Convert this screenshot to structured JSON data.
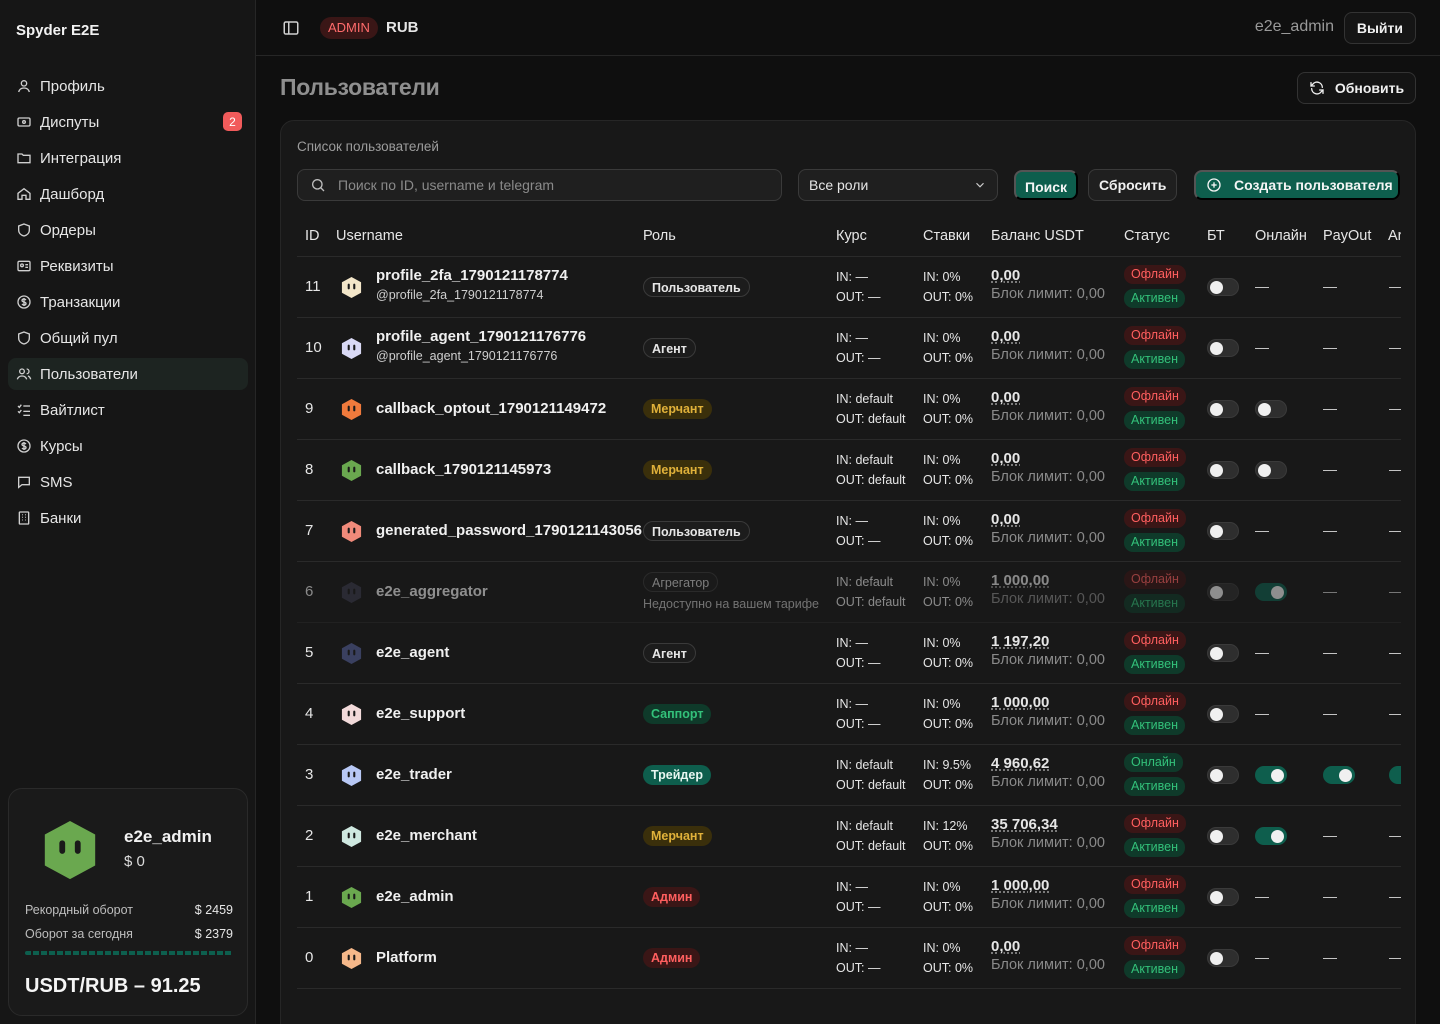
{
  "app": {
    "brand": "Spyder E2E"
  },
  "sidebar": {
    "items": [
      {
        "label": "Профиль",
        "icon": "user-icon"
      },
      {
        "label": "Диспуты",
        "icon": "ticket-icon",
        "badge": "2"
      },
      {
        "label": "Интеграция",
        "icon": "folder-icon"
      },
      {
        "label": "Дашборд",
        "icon": "home-icon"
      },
      {
        "label": "Ордеры",
        "icon": "shield-icon"
      },
      {
        "label": "Реквизиты",
        "icon": "id-card-icon"
      },
      {
        "label": "Транзакции",
        "icon": "dollar-circle-icon"
      },
      {
        "label": "Общий пул",
        "icon": "shield-icon"
      },
      {
        "label": "Пользователи",
        "icon": "users-icon",
        "active": true
      },
      {
        "label": "Вайтлист",
        "icon": "checklist-icon"
      },
      {
        "label": "Курсы",
        "icon": "dollar-circle-icon"
      },
      {
        "label": "SMS",
        "icon": "message-icon"
      },
      {
        "label": "Банки",
        "icon": "building-icon"
      }
    ],
    "user_card": {
      "name": "e2e_admin",
      "balance": "$ 0",
      "record_label": "Рекордный оборот",
      "record_value": "$ 2459",
      "today_label": "Оборот за сегодня",
      "today_value": "$ 2379",
      "today_progress": 0.97,
      "rate": "USDT/RUB – 91.25"
    }
  },
  "topbar": {
    "role_badge": "ADMIN",
    "currency": "RUB",
    "username": "e2e_admin",
    "logout_label": "Выйти"
  },
  "page": {
    "title": "Пользователи",
    "refresh_label": "Обновить",
    "card_title": "Список пользователей",
    "search_placeholder": "Поиск по ID, username и telegram",
    "role_filter": "Все роли",
    "search_button": "Поиск",
    "reset_button": "Сбросить",
    "create_button": "Создать пользователя"
  },
  "table": {
    "headers": [
      "ID",
      "Username",
      "Роль",
      "Курс",
      "Ставки",
      "Баланс USDT",
      "Статус",
      "БТ",
      "Онлайн",
      "PayOut",
      "Ar"
    ],
    "rows": [
      {
        "id": "11",
        "username": "profile_2fa_1790121178774",
        "tg": "@profile_2fa_1790121178774",
        "role": "Пользователь",
        "role_kind": "user",
        "avatar_color": "#f3e6c9",
        "kurs_in": "IN: —",
        "kurs_out": "OUT: —",
        "st_in": "IN: 0%",
        "st_out": "OUT: 0%",
        "balance": "0,00",
        "limit": "Блок лимит: 0,00",
        "status": "Офлайн",
        "active": "Активен",
        "bt": false,
        "online": null,
        "payout": null,
        "ar": null
      },
      {
        "id": "10",
        "username": "profile_agent_1790121176776",
        "tg": "@profile_agent_1790121176776",
        "role": "Агент",
        "role_kind": "agent",
        "avatar_color": "#d9d9f5",
        "kurs_in": "IN: —",
        "kurs_out": "OUT: —",
        "st_in": "IN: 0%",
        "st_out": "OUT: 0%",
        "balance": "0,00",
        "limit": "Блок лимит: 0,00",
        "status": "Офлайн",
        "active": "Активен",
        "bt": false,
        "online": null,
        "payout": null,
        "ar": null
      },
      {
        "id": "9",
        "username": "callback_optout_1790121149472",
        "tg": "",
        "role": "Мерчант",
        "role_kind": "merchant",
        "avatar_color": "#f07a3c",
        "kurs_in": "IN: default",
        "kurs_out": "OUT: default",
        "st_in": "IN: 0%",
        "st_out": "OUT: 0%",
        "balance": "0,00",
        "limit": "Блок лимит: 0,00",
        "status": "Офлайн",
        "active": "Активен",
        "bt": false,
        "online": false,
        "payout": null,
        "ar": null
      },
      {
        "id": "8",
        "username": "callback_1790121145973",
        "tg": "",
        "role": "Мерчант",
        "role_kind": "merchant",
        "avatar_color": "#6aa84f",
        "kurs_in": "IN: default",
        "kurs_out": "OUT: default",
        "st_in": "IN: 0%",
        "st_out": "OUT: 0%",
        "balance": "0,00",
        "limit": "Блок лимит: 0,00",
        "status": "Офлайн",
        "active": "Активен",
        "bt": false,
        "online": false,
        "payout": null,
        "ar": null
      },
      {
        "id": "7",
        "username": "generated_password_1790121143056",
        "tg": "",
        "role": "Пользователь",
        "role_kind": "user",
        "avatar_color": "#f08a7a",
        "kurs_in": "IN: —",
        "kurs_out": "OUT: —",
        "st_in": "IN: 0%",
        "st_out": "OUT: 0%",
        "balance": "0,00",
        "limit": "Блок лимит: 0,00",
        "status": "Офлайн",
        "active": "Активен",
        "bt": false,
        "online": null,
        "payout": null,
        "ar": null
      },
      {
        "id": "6",
        "username": "e2e_aggregator",
        "tg": "",
        "role": "Агрегатор",
        "role_kind": "aggr",
        "role_note": "Недоступно на вашем тарифе",
        "dim": true,
        "avatar_color": "#3a3a4a",
        "kurs_in": "IN: default",
        "kurs_out": "OUT: default",
        "st_in": "IN: 0%",
        "st_out": "OUT: 0%",
        "balance": "1 000,00",
        "limit": "Блок лимит: 0,00",
        "status": "Офлайн",
        "active": "Активен",
        "bt": false,
        "online": true,
        "payout": null,
        "ar": null
      },
      {
        "id": "5",
        "username": "e2e_agent",
        "tg": "",
        "role": "Агент",
        "role_kind": "agent",
        "avatar_color": "#3a4060",
        "kurs_in": "IN: —",
        "kurs_out": "OUT: —",
        "st_in": "IN: 0%",
        "st_out": "OUT: 0%",
        "balance": "1 197,20",
        "limit": "Блок лимит: 0,00",
        "status": "Офлайн",
        "active": "Активен",
        "bt": false,
        "online": null,
        "payout": null,
        "ar": null
      },
      {
        "id": "4",
        "username": "e2e_support",
        "tg": "",
        "role": "Саппорт",
        "role_kind": "support",
        "avatar_color": "#f2dada",
        "kurs_in": "IN: —",
        "kurs_out": "OUT: —",
        "st_in": "IN: 0%",
        "st_out": "OUT: 0%",
        "balance": "1 000,00",
        "limit": "Блок лимит: 0,00",
        "status": "Офлайн",
        "active": "Активен",
        "bt": false,
        "online": null,
        "payout": null,
        "ar": null
      },
      {
        "id": "3",
        "username": "e2e_trader",
        "tg": "",
        "role": "Трейдер",
        "role_kind": "trader",
        "avatar_color": "#b8c8f5",
        "kurs_in": "IN: default",
        "kurs_out": "OUT: default",
        "st_in": "IN: 9.5%",
        "st_out": "OUT: 0%",
        "balance": "4 960,62",
        "limit": "Блок лимит: 0,00",
        "status": "Онлайн",
        "active": "Активен",
        "bt": false,
        "online": true,
        "payout": true,
        "ar": true
      },
      {
        "id": "2",
        "username": "e2e_merchant",
        "tg": "",
        "role": "Мерчант",
        "role_kind": "merchant",
        "avatar_color": "#cfe8e0",
        "kurs_in": "IN: default",
        "kurs_out": "OUT: default",
        "st_in": "IN: 12%",
        "st_out": "OUT: 0%",
        "balance": "35 706,34",
        "limit": "Блок лимит: 0,00",
        "status": "Офлайн",
        "active": "Активен",
        "bt": false,
        "online": true,
        "payout": null,
        "ar": null
      },
      {
        "id": "1",
        "username": "e2e_admin",
        "tg": "",
        "role": "Админ",
        "role_kind": "admin",
        "avatar_color": "#6aa84f",
        "kurs_in": "IN: —",
        "kurs_out": "OUT: —",
        "st_in": "IN: 0%",
        "st_out": "OUT: 0%",
        "balance": "1 000,00",
        "limit": "Блок лимит: 0,00",
        "status": "Офлайн",
        "active": "Активен",
        "bt": false,
        "online": null,
        "payout": null,
        "ar": null
      },
      {
        "id": "0",
        "username": "Platform",
        "tg": "",
        "role": "Админ",
        "role_kind": "admin",
        "avatar_color": "#f5b88a",
        "kurs_in": "IN: —",
        "kurs_out": "OUT: —",
        "st_in": "IN: 0%",
        "st_out": "OUT: 0%",
        "balance": "0,00",
        "limit": "Блок лимит: 0,00",
        "status": "Офлайн",
        "active": "Активен",
        "bt": false,
        "online": null,
        "payout": null,
        "ar": null
      }
    ]
  },
  "colors": {
    "accent": "#0e5e4d",
    "danger": "#ff5f5f",
    "success": "#33c17a",
    "warning": "#e0b13a"
  }
}
